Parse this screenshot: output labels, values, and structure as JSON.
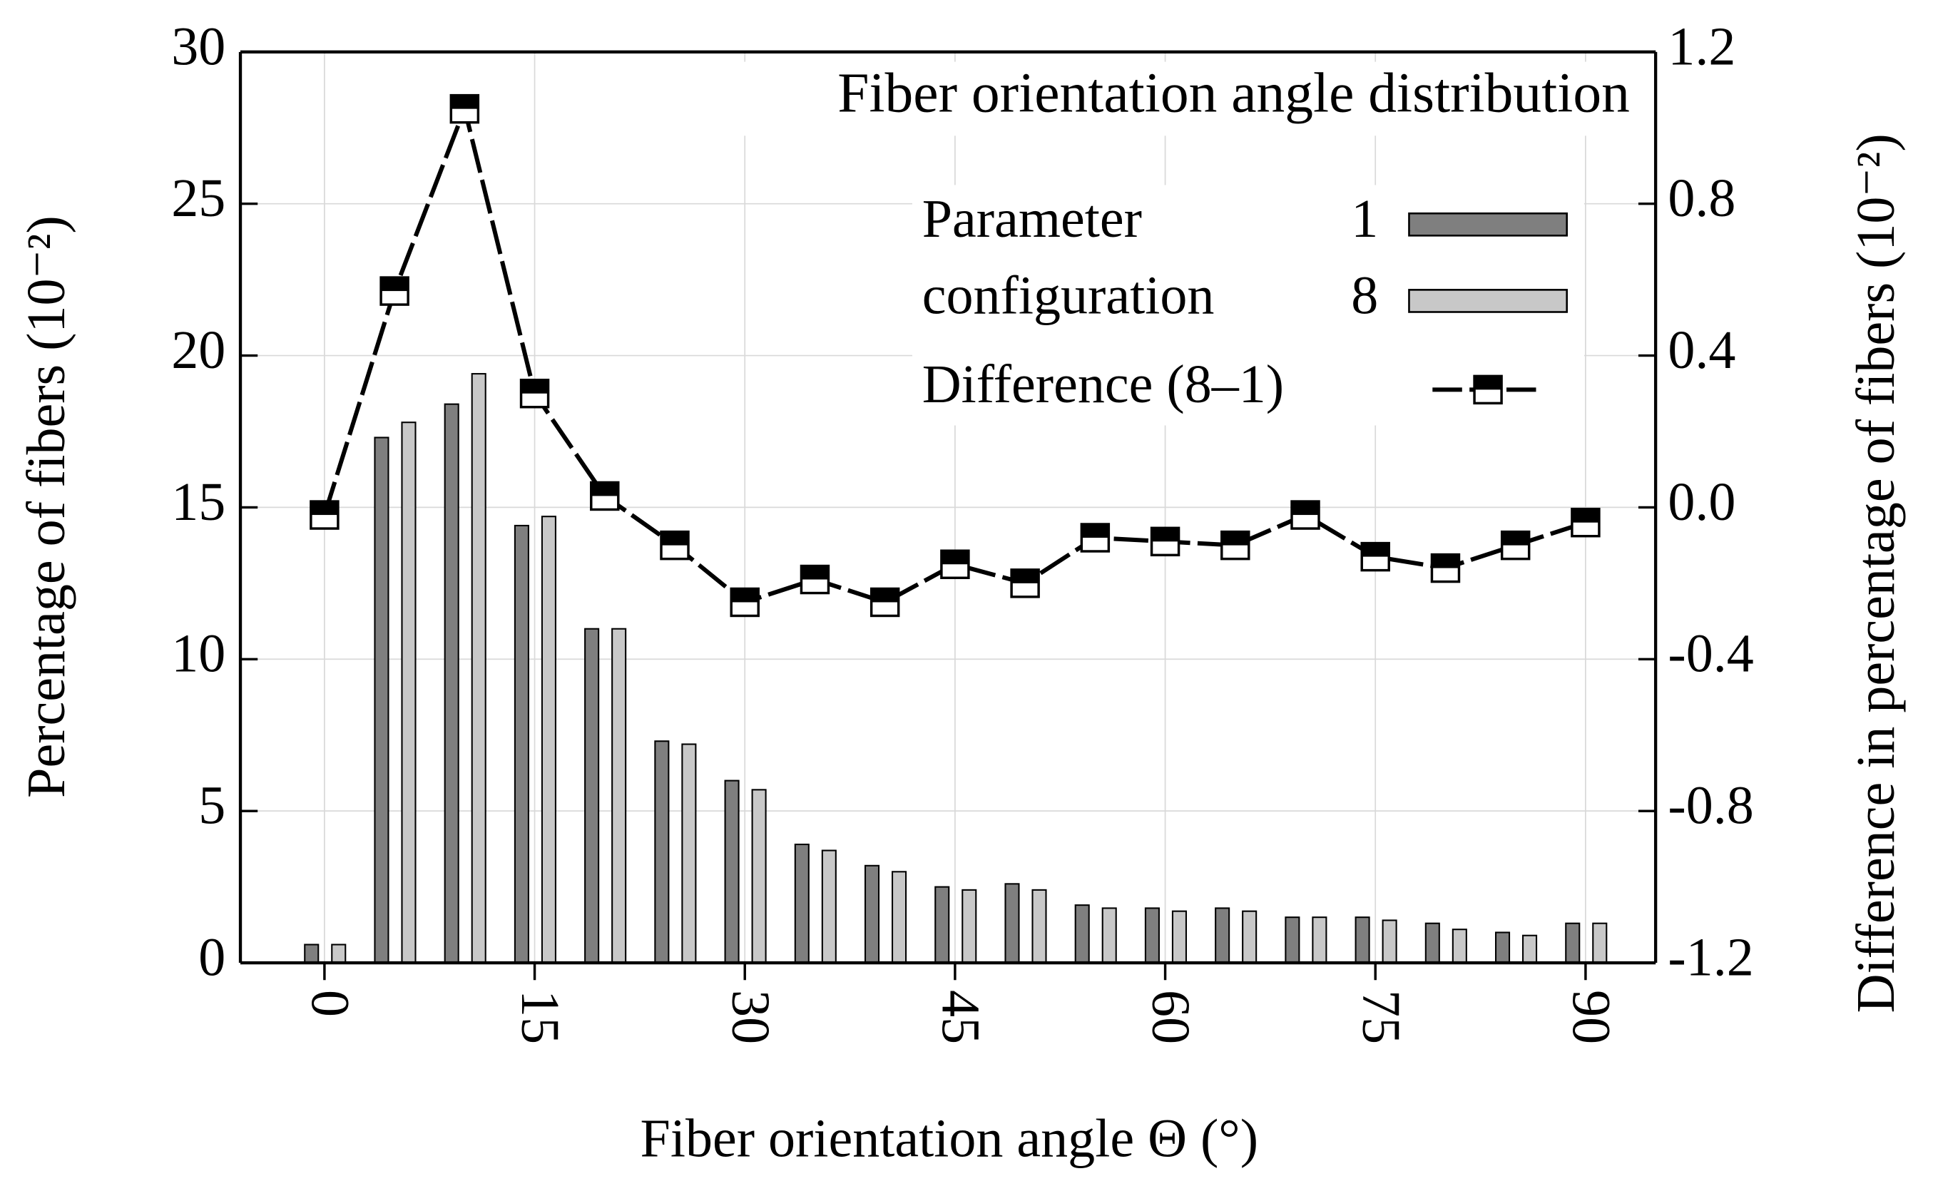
{
  "chart_data": {
    "type": "bar-line",
    "title": "Fiber orientation angle distribution",
    "x_label": "Fiber orientation angle Θ (°)",
    "y_label": "Percentage of fibers (10⁻²)",
    "y2_label": "Difference in percentage of fibers (10⁻²)",
    "legend_title": [
      "Parameter",
      "configuration"
    ],
    "x": [
      0,
      5,
      10,
      15,
      20,
      25,
      30,
      35,
      40,
      45,
      50,
      55,
      60,
      65,
      70,
      75,
      80,
      85,
      90
    ],
    "series": [
      {
        "name": "1",
        "color": "#7f7f7f",
        "values": [
          0.6,
          17.3,
          18.4,
          14.4,
          11.0,
          7.3,
          6.0,
          3.9,
          3.2,
          2.5,
          2.6,
          1.9,
          1.8,
          1.8,
          1.5,
          1.5,
          1.3,
          1.0,
          1.3
        ]
      },
      {
        "name": "8",
        "color": "#c8c8c8",
        "values": [
          0.6,
          17.8,
          19.4,
          14.7,
          11.0,
          7.2,
          5.7,
          3.7,
          3.0,
          2.4,
          2.4,
          1.8,
          1.7,
          1.7,
          1.5,
          1.4,
          1.1,
          0.9,
          1.3
        ]
      },
      {
        "name": "Difference (8–1)",
        "color": "#000000",
        "axis": "y2",
        "values": [
          -0.02,
          0.57,
          1.05,
          0.3,
          0.03,
          -0.1,
          -0.25,
          -0.19,
          -0.25,
          -0.15,
          -0.2,
          -0.08,
          -0.09,
          -0.1,
          -0.02,
          -0.13,
          -0.16,
          -0.1,
          -0.04
        ]
      }
    ],
    "xlim": [
      -6,
      95
    ],
    "xticks": [
      0,
      15,
      30,
      45,
      60,
      75,
      90
    ],
    "ylim": [
      0,
      30
    ],
    "yticks": [
      0,
      5,
      10,
      15,
      20,
      25,
      30
    ],
    "y2lim": [
      -1.2,
      1.2
    ],
    "y2ticks": [
      -1.2,
      -0.8,
      -0.4,
      {
        "value": 0,
        "label": "0.0"
      },
      0.4,
      0.8,
      1.2
    ],
    "grid": true
  }
}
